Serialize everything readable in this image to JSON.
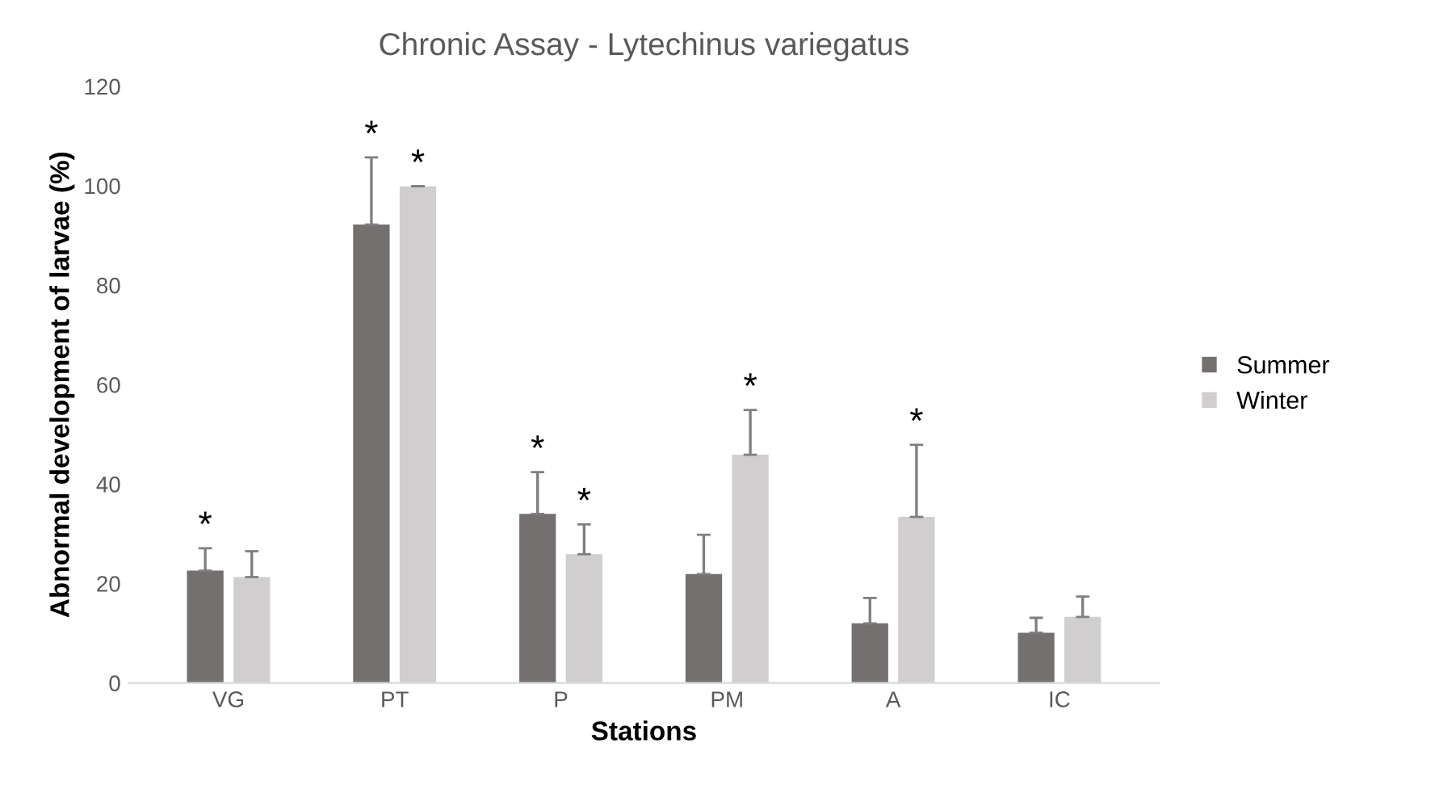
{
  "chart_data": {
    "type": "bar",
    "title": "Chronic Assay - Lytechinus variegatus",
    "xlabel": "Stations",
    "ylabel": "Abnormal development of larvae (%)",
    "categories": [
      "VG",
      "PT",
      "P",
      "PM",
      "A",
      "IC"
    ],
    "series": [
      {
        "name": "Summer",
        "color": "#757070",
        "values": [
          22.6,
          92.2,
          34,
          21.9,
          12,
          10.1
        ],
        "errors": [
          [
            22.6,
            27.1
          ],
          [
            92.2,
            105.7
          ],
          [
            34,
            42.4
          ],
          [
            21.9,
            29.8
          ],
          [
            12,
            17.1
          ],
          [
            10.1,
            13.1
          ]
        ],
        "value_labels": [
          "*",
          "*",
          "*",
          null,
          null,
          null
        ]
      },
      {
        "name": "Winter",
        "color": "#d0cece",
        "values": [
          21.3,
          99.9,
          25.9,
          45.9,
          33.4,
          13.3
        ],
        "errors": [
          [
            21.3,
            26.5
          ],
          [
            99.9,
            99.9
          ],
          [
            25.9,
            31.9
          ],
          [
            45.9,
            54.9
          ],
          [
            33.4,
            47.9
          ],
          [
            13.3,
            17.4
          ]
        ],
        "value_labels": [
          null,
          "*",
          "*",
          "*",
          "*",
          null
        ]
      }
    ],
    "ylim": [
      0,
      120
    ],
    "yticks": [
      0,
      20,
      40,
      60,
      80,
      100,
      120
    ],
    "grid": false,
    "legend": "right"
  }
}
